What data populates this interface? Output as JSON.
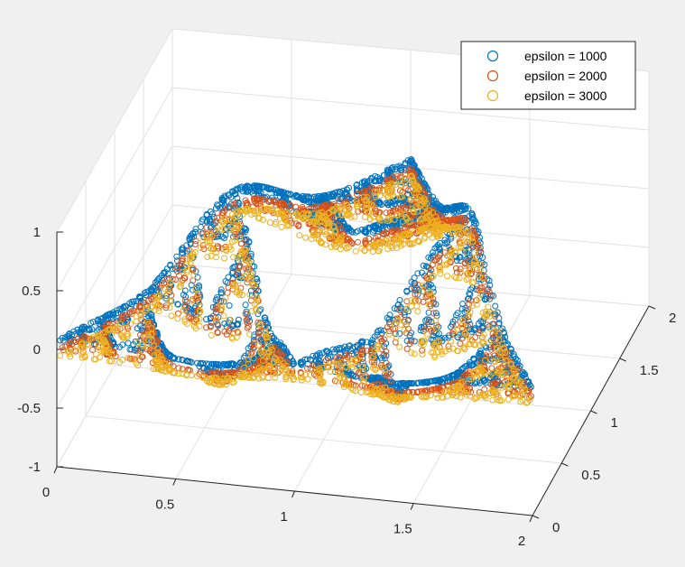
{
  "chart_data": {
    "type": "scatter",
    "title": "",
    "xlabel": "",
    "ylabel": "",
    "zlabel": "",
    "xlim": [
      0,
      2
    ],
    "ylim": [
      0,
      2
    ],
    "zlim": [
      -1,
      1
    ],
    "grid": true,
    "legend_position": "top-right",
    "x_ticks": [
      "0",
      "0.5",
      "1",
      "1.5",
      "2"
    ],
    "y_ticks": [
      "0",
      "0.5",
      "1",
      "1.5",
      "2"
    ],
    "z_ticks": [
      "-1",
      "-0.5",
      "0",
      "0.5",
      "1"
    ],
    "marker": "circle",
    "series": [
      {
        "name": "epsilon = 1000",
        "color": "#0072BD",
        "z_offset": 0.08,
        "amplitude": 0.92
      },
      {
        "name": "epsilon = 2000",
        "color": "#D95319",
        "z_offset": 0.0,
        "amplitude": 0.86
      },
      {
        "name": "epsilon = 3000",
        "color": "#EDB120",
        "z_offset": -0.05,
        "amplitude": 0.8
      }
    ],
    "domain": "Sierpinski triangle over [0,2] x [0,2] (vertices (0,0), (2,0), (1,2))",
    "description_surface": "points on Sierpinski gasket with z varying as ridges peaking near 0.9 and valleys near -0.5"
  }
}
